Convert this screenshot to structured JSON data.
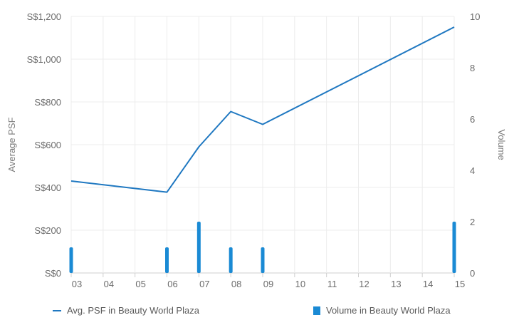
{
  "chart_data": {
    "type": "bar+line",
    "title": "",
    "x_ticks": [
      "03",
      "04",
      "05",
      "06",
      "07",
      "08",
      "09",
      "10",
      "11",
      "12",
      "13",
      "14",
      "15"
    ],
    "y_left": {
      "label": "Average PSF",
      "ticks": [
        "S$0",
        "S$200",
        "S$400",
        "S$600",
        "S$800",
        "S$1,000",
        "S$1,200"
      ],
      "range": [
        0,
        1200
      ]
    },
    "y_right": {
      "label": "Volume",
      "ticks": [
        "0",
        "2",
        "4",
        "6",
        "8",
        "10"
      ],
      "range": [
        0,
        10
      ]
    },
    "grid": true,
    "legend_position": "bottom",
    "series": [
      {
        "name": "Avg. PSF in Beauty World Plaza",
        "kind": "line",
        "axis": "left",
        "color": "#1f78c1",
        "points": [
          {
            "x": "03",
            "y": 430
          },
          {
            "x": "06",
            "y": 378
          },
          {
            "x": "07",
            "y": 590
          },
          {
            "x": "08",
            "y": 755
          },
          {
            "x": "09",
            "y": 695
          },
          {
            "x": "15",
            "y": 1150
          }
        ]
      },
      {
        "name": "Volume in Beauty World Plaza",
        "kind": "bar",
        "axis": "right",
        "color": "#1a8ad4",
        "points": [
          {
            "x": "03",
            "y": 1
          },
          {
            "x": "06",
            "y": 1
          },
          {
            "x": "07",
            "y": 2
          },
          {
            "x": "08",
            "y": 1
          },
          {
            "x": "09",
            "y": 1
          },
          {
            "x": "15",
            "y": 2
          }
        ]
      }
    ]
  }
}
